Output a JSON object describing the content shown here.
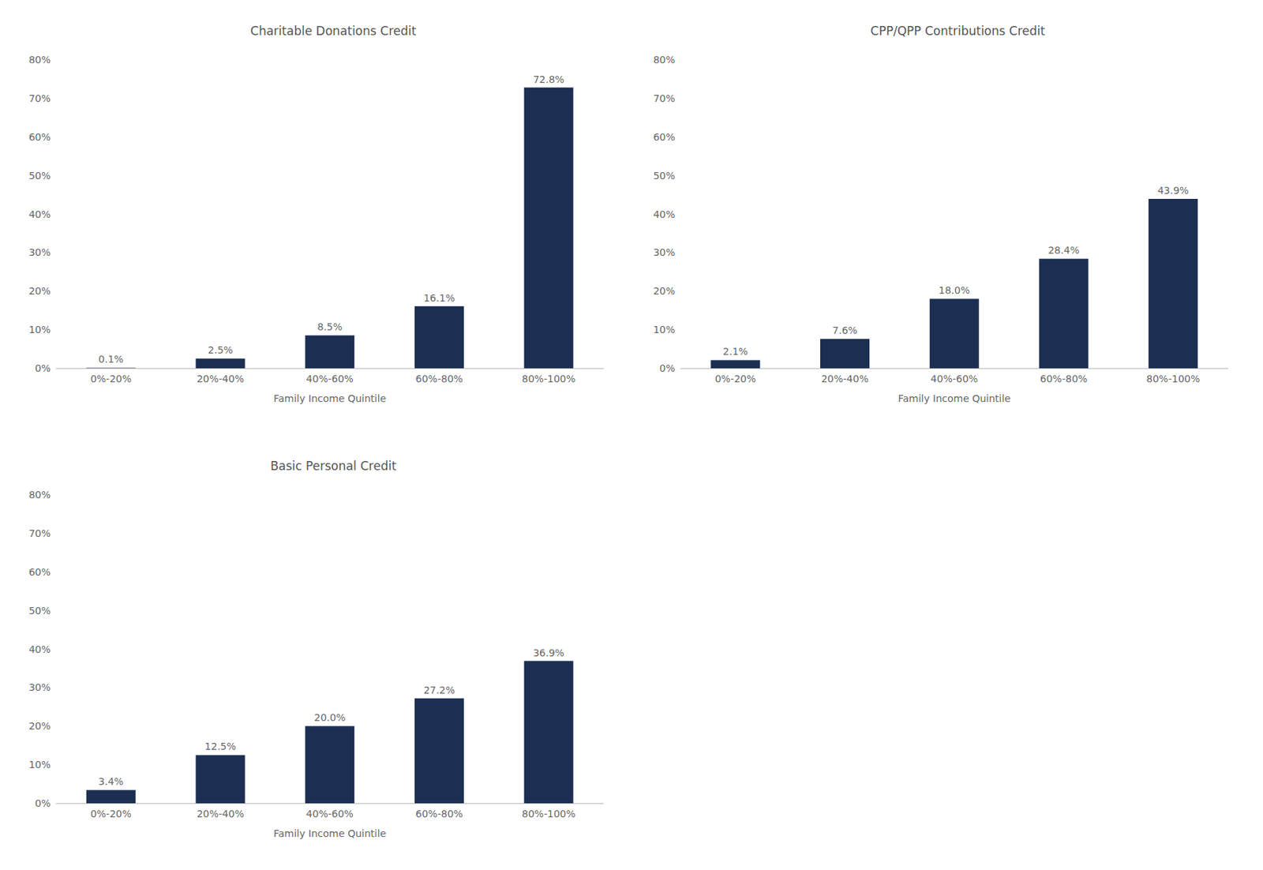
{
  "chart_data": [
    {
      "type": "bar",
      "title": "Charitable Donations Credit",
      "categories": [
        "0%-20%",
        "20%-40%",
        "40%-60%",
        "60%-80%",
        "80%-100%"
      ],
      "values": [
        0.1,
        2.5,
        8.5,
        16.1,
        72.8
      ],
      "value_labels": [
        "0.1%",
        "2.5%",
        "8.5%",
        "16.1%",
        "72.8%"
      ],
      "color": "#1c2f52",
      "xlabel": "Family Income Quintile",
      "ylim": [
        0,
        80
      ],
      "yticks": [
        {
          "value": 0,
          "label": "0%"
        },
        {
          "value": 10,
          "label": "10%"
        },
        {
          "value": 20,
          "label": "20%"
        },
        {
          "value": 30,
          "label": "30%"
        },
        {
          "value": 40,
          "label": "40%"
        },
        {
          "value": 50,
          "label": "50%"
        },
        {
          "value": 60,
          "label": "60%"
        },
        {
          "value": 70,
          "label": "70%"
        },
        {
          "value": 80,
          "label": "80%"
        }
      ],
      "grid": false
    },
    {
      "type": "bar",
      "title": "CPP/QPP Contributions Credit",
      "categories": [
        "0%-20%",
        "20%-40%",
        "40%-60%",
        "60%-80%",
        "80%-100%"
      ],
      "values": [
        2.1,
        7.6,
        18.0,
        28.4,
        43.9
      ],
      "value_labels": [
        "2.1%",
        "7.6%",
        "18.0%",
        "28.4%",
        "43.9%"
      ],
      "color": "#1c2f52",
      "xlabel": "Family Income Quintile",
      "ylim": [
        0,
        80
      ],
      "yticks": [
        {
          "value": 0,
          "label": "0%"
        },
        {
          "value": 10,
          "label": "10%"
        },
        {
          "value": 20,
          "label": "20%"
        },
        {
          "value": 30,
          "label": "30%"
        },
        {
          "value": 40,
          "label": "40%"
        },
        {
          "value": 50,
          "label": "50%"
        },
        {
          "value": 60,
          "label": "60%"
        },
        {
          "value": 70,
          "label": "70%"
        },
        {
          "value": 80,
          "label": "80%"
        }
      ],
      "grid": false
    },
    {
      "type": "bar",
      "title": "Basic Personal Credit",
      "categories": [
        "0%-20%",
        "20%-40%",
        "40%-60%",
        "60%-80%",
        "80%-100%"
      ],
      "values": [
        3.4,
        12.5,
        20.0,
        27.2,
        36.9
      ],
      "value_labels": [
        "3.4%",
        "12.5%",
        "20.0%",
        "27.2%",
        "36.9%"
      ],
      "color": "#1c2f52",
      "xlabel": "Family Income Quintile",
      "ylim": [
        0,
        80
      ],
      "yticks": [
        {
          "value": 0,
          "label": "0%"
        },
        {
          "value": 10,
          "label": "10%"
        },
        {
          "value": 20,
          "label": "20%"
        },
        {
          "value": 30,
          "label": "30%"
        },
        {
          "value": 40,
          "label": "40%"
        },
        {
          "value": 50,
          "label": "50%"
        },
        {
          "value": 60,
          "label": "60%"
        },
        {
          "value": 70,
          "label": "70%"
        },
        {
          "value": 80,
          "label": "80%"
        }
      ],
      "grid": false
    }
  ]
}
